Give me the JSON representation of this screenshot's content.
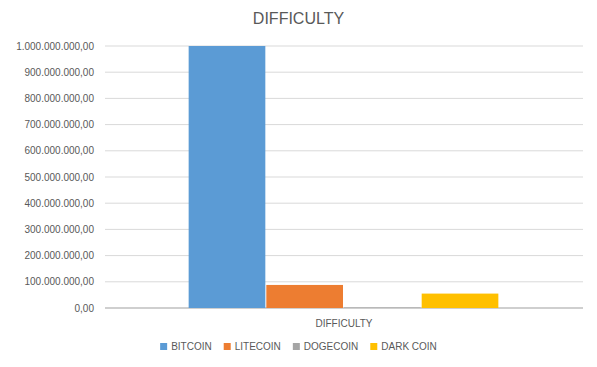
{
  "chart_data": {
    "type": "bar",
    "title": "DIFFICULTY",
    "categories": [
      "DIFFICULTY"
    ],
    "series": [
      {
        "name": "BITCOIN",
        "color": "#5b9bd5",
        "values": [
          1000000000
        ]
      },
      {
        "name": "LITECOIN",
        "color": "#ed7d31",
        "values": [
          88000000
        ]
      },
      {
        "name": "DOGECOIN",
        "color": "#a5a5a5",
        "values": [
          2000000
        ]
      },
      {
        "name": "DARK COIN",
        "color": "#ffc000",
        "values": [
          55000000
        ]
      }
    ],
    "ylim": [
      0,
      1000000000
    ],
    "yticks": [
      {
        "value": 0,
        "label": "0,00"
      },
      {
        "value": 100000000,
        "label": "100.000.000,00"
      },
      {
        "value": 200000000,
        "label": "200.000.000,00"
      },
      {
        "value": 300000000,
        "label": "300.000.000,00"
      },
      {
        "value": 400000000,
        "label": "400.000.000,00"
      },
      {
        "value": 500000000,
        "label": "500.000.000,00"
      },
      {
        "value": 600000000,
        "label": "600.000.000,00"
      },
      {
        "value": 700000000,
        "label": "700.000.000,00"
      },
      {
        "value": 800000000,
        "label": "800.000.000,00"
      },
      {
        "value": 900000000,
        "label": "900.000.000,00"
      },
      {
        "value": 1000000000,
        "label": "1.000.000.000,00"
      }
    ],
    "grid": true,
    "legend": "bottom"
  }
}
